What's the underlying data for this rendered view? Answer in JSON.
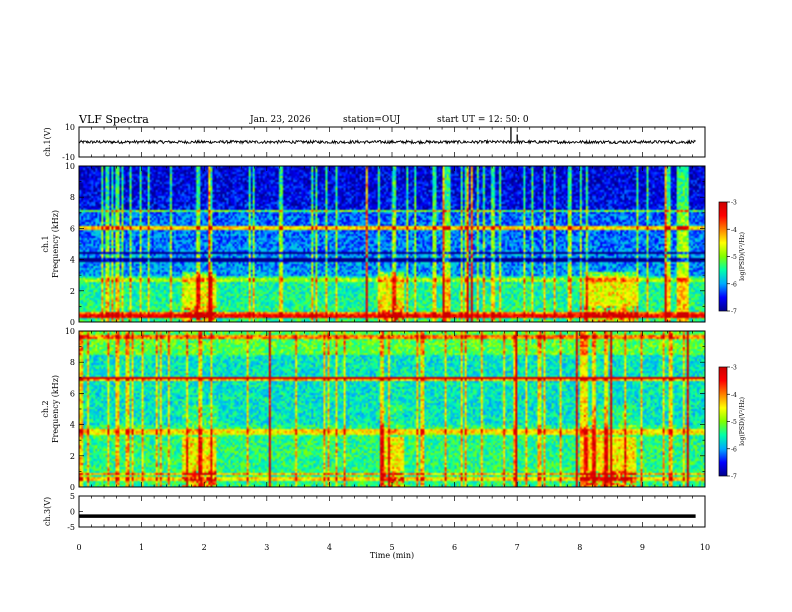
{
  "header": {
    "title": "VLF Spectra",
    "date": "Jan. 23, 2026",
    "station": "station=OUJ",
    "start": "start  UT =   12: 50: 0"
  },
  "chart_data": [
    {
      "type": "line",
      "panel": "waveform-1",
      "ylabel": "ch.1(V)",
      "ylim": [
        -10,
        10
      ],
      "yticks": [
        "10",
        "-10"
      ],
      "baseline": 0,
      "amplitude_typical": 1.0,
      "spikes": [
        {
          "t": 6.9,
          "v": 10
        },
        {
          "t": 7.0,
          "v": 5
        }
      ]
    },
    {
      "type": "heatmap",
      "panel": "spectrogram-1",
      "ylabel_top": "ch.1",
      "ylabel": "Frequency (kHz)",
      "ylim": [
        0,
        10
      ],
      "yticks": [
        "0",
        "2",
        "4",
        "6",
        "8",
        "10"
      ],
      "xlim": [
        0,
        10
      ],
      "bursts": [
        {
          "t0": 1.65,
          "t1": 2.2
        },
        {
          "t0": 4.8,
          "t1": 5.2
        },
        {
          "t0": 8.05,
          "t1": 8.9
        }
      ],
      "colorbar": {
        "label": "log(PSD)(V²/Hz)",
        "range": [
          -7,
          -3
        ],
        "ticks": [
          "-3",
          "-4",
          "-5",
          "-6",
          "-7"
        ]
      }
    },
    {
      "type": "heatmap",
      "panel": "spectrogram-2",
      "ylabel_top": "ch.2",
      "ylabel": "Frequency (kHz)",
      "ylim": [
        0,
        10
      ],
      "yticks": [
        "0",
        "2",
        "4",
        "6",
        "8",
        "10"
      ],
      "xlim": [
        0,
        10
      ],
      "bursts": [
        {
          "t0": 1.65,
          "t1": 2.2
        },
        {
          "t0": 4.8,
          "t1": 5.2
        },
        {
          "t0": 8.05,
          "t1": 8.9
        }
      ],
      "colorbar": {
        "label": "log(PSD)(V²/Hz)",
        "range": [
          -7,
          -3
        ],
        "ticks": [
          "-3",
          "-4",
          "-5",
          "-6",
          "-7"
        ]
      }
    },
    {
      "type": "line",
      "panel": "waveform-3",
      "ylabel": "ch.3(V)",
      "ylim": [
        -5,
        5
      ],
      "yticks": [
        "5",
        "0",
        "-5"
      ],
      "baseline": -1.5
    }
  ],
  "xaxis": {
    "label": "Time (min)",
    "ticks": [
      "0",
      "1",
      "2",
      "3",
      "4",
      "5",
      "6",
      "7",
      "8",
      "9",
      "10"
    ],
    "xlim": [
      0,
      10
    ]
  },
  "colors": {
    "colormap": [
      "#00008b",
      "#0000ff",
      "#00aaff",
      "#00ffaa",
      "#80ff00",
      "#ffff00",
      "#ff8000",
      "#ff0000",
      "#cc0000"
    ]
  }
}
